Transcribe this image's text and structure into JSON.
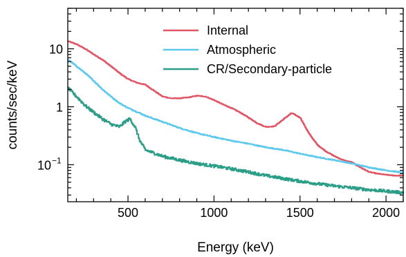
{
  "chart_data": {
    "type": "line",
    "xlabel": "Energy (keV)",
    "ylabel": "counts/sec/keV",
    "xlim": [
      150,
      2100
    ],
    "ylim": [
      0.023,
      50
    ],
    "yscale": "log",
    "x_ticks": [
      {
        "value": 500,
        "label": "500"
      },
      {
        "value": 1000,
        "label": "1000"
      },
      {
        "value": 1500,
        "label": "1500"
      },
      {
        "value": 2000,
        "label": "2000"
      }
    ],
    "y_ticks": [
      {
        "value": 10,
        "label": "10"
      },
      {
        "value": 1,
        "label": "1"
      },
      {
        "value": 0.1,
        "label": "10",
        "exponent": "−1"
      }
    ],
    "legend_position": "top-right",
    "grid": false,
    "series": [
      {
        "name": "Internal",
        "color": "#e05565",
        "points": [
          [
            150,
            13.5
          ],
          [
            200,
            12
          ],
          [
            250,
            10
          ],
          [
            300,
            8
          ],
          [
            350,
            6.5
          ],
          [
            400,
            5
          ],
          [
            450,
            3.8
          ],
          [
            500,
            3
          ],
          [
            550,
            2.6
          ],
          [
            600,
            2.4
          ],
          [
            650,
            1.9
          ],
          [
            700,
            1.5
          ],
          [
            750,
            1.4
          ],
          [
            800,
            1.4
          ],
          [
            850,
            1.45
          ],
          [
            900,
            1.55
          ],
          [
            950,
            1.5
          ],
          [
            1000,
            1.3
          ],
          [
            1050,
            1.1
          ],
          [
            1100,
            0.95
          ],
          [
            1150,
            0.8
          ],
          [
            1200,
            0.65
          ],
          [
            1250,
            0.52
          ],
          [
            1300,
            0.45
          ],
          [
            1350,
            0.46
          ],
          [
            1400,
            0.6
          ],
          [
            1450,
            0.78
          ],
          [
            1500,
            0.65
          ],
          [
            1550,
            0.35
          ],
          [
            1600,
            0.22
          ],
          [
            1650,
            0.17
          ],
          [
            1700,
            0.14
          ],
          [
            1750,
            0.12
          ],
          [
            1800,
            0.11
          ],
          [
            1850,
            0.09
          ],
          [
            1900,
            0.075
          ],
          [
            1950,
            0.07
          ],
          [
            2000,
            0.067
          ],
          [
            2050,
            0.065
          ],
          [
            2100,
            0.065
          ]
        ]
      },
      {
        "name": "Atmospheric",
        "color": "#5bc8ec",
        "points": [
          [
            150,
            6.5
          ],
          [
            200,
            5
          ],
          [
            250,
            3.8
          ],
          [
            300,
            2.8
          ],
          [
            350,
            2
          ],
          [
            400,
            1.5
          ],
          [
            450,
            1.15
          ],
          [
            500,
            0.95
          ],
          [
            550,
            0.82
          ],
          [
            600,
            0.7
          ],
          [
            700,
            0.55
          ],
          [
            800,
            0.43
          ],
          [
            900,
            0.35
          ],
          [
            1000,
            0.3
          ],
          [
            1100,
            0.26
          ],
          [
            1200,
            0.23
          ],
          [
            1300,
            0.2
          ],
          [
            1400,
            0.18
          ],
          [
            1500,
            0.155
          ],
          [
            1600,
            0.135
          ],
          [
            1700,
            0.12
          ],
          [
            1800,
            0.105
          ],
          [
            1900,
            0.09
          ],
          [
            2000,
            0.08
          ],
          [
            2100,
            0.073
          ]
        ]
      },
      {
        "name": "CR/Secondary-particle",
        "color": "#2a9d86",
        "points": [
          [
            150,
            2.1
          ],
          [
            200,
            1.5
          ],
          [
            250,
            1.05
          ],
          [
            300,
            0.8
          ],
          [
            350,
            0.62
          ],
          [
            400,
            0.5
          ],
          [
            450,
            0.45
          ],
          [
            480,
            0.55
          ],
          [
            510,
            0.62
          ],
          [
            540,
            0.45
          ],
          [
            570,
            0.25
          ],
          [
            600,
            0.18
          ],
          [
            700,
            0.14
          ],
          [
            800,
            0.12
          ],
          [
            900,
            0.105
          ],
          [
            1000,
            0.095
          ],
          [
            1100,
            0.085
          ],
          [
            1200,
            0.075
          ],
          [
            1300,
            0.065
          ],
          [
            1400,
            0.058
          ],
          [
            1500,
            0.052
          ],
          [
            1600,
            0.047
          ],
          [
            1700,
            0.043
          ],
          [
            1800,
            0.04
          ],
          [
            1900,
            0.037
          ],
          [
            2000,
            0.035
          ],
          [
            2100,
            0.033
          ]
        ]
      }
    ]
  }
}
